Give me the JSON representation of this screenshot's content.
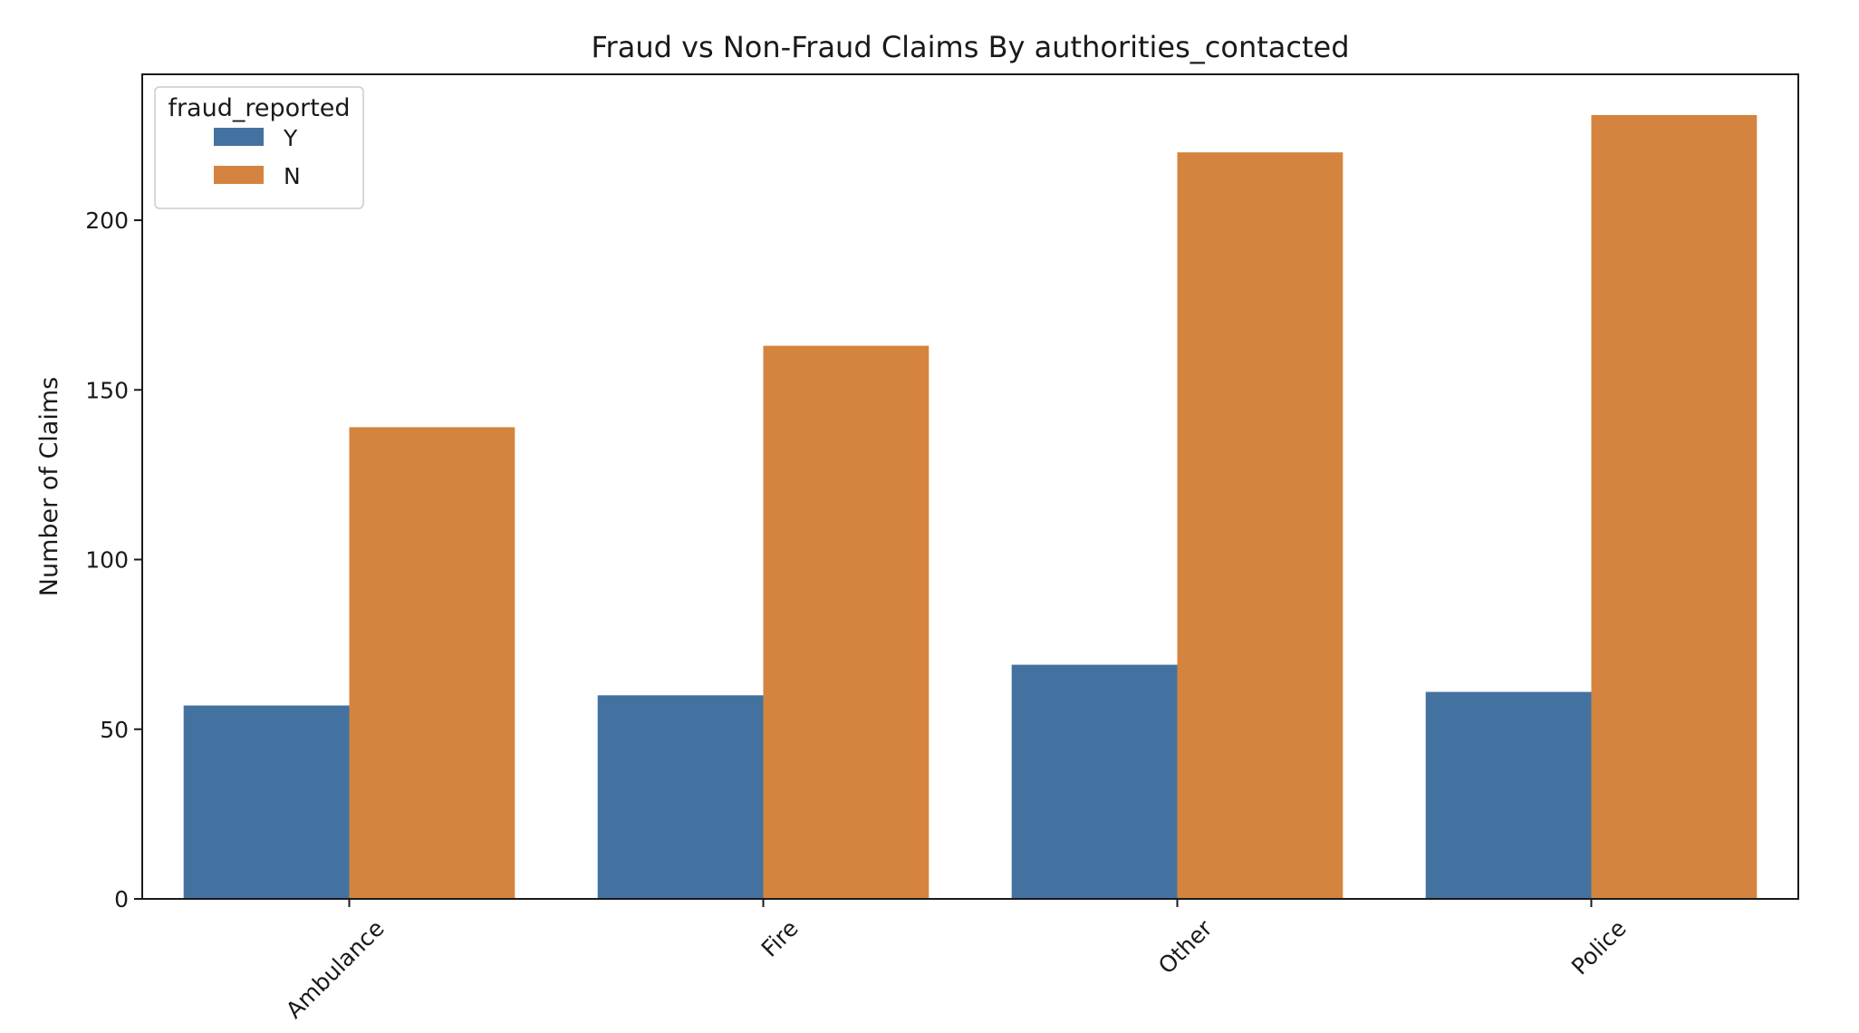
{
  "chart_data": {
    "type": "bar",
    "title": "Fraud vs Non-Fraud Claims By authorities_contacted",
    "xlabel": "",
    "ylabel": "Number of Claims",
    "categories": [
      "Ambulance",
      "Fire",
      "Other",
      "Police"
    ],
    "series": [
      {
        "name": "Y",
        "values": [
          57,
          60,
          69,
          61
        ],
        "color": "#4472a0"
      },
      {
        "name": "N",
        "values": [
          139,
          163,
          220,
          231
        ],
        "color": "#d4843e"
      }
    ],
    "ylim": [
      0,
      243
    ],
    "yticks": [
      0,
      50,
      100,
      150,
      200
    ],
    "legend": {
      "title": "fraud_reported",
      "placement": "top-left"
    },
    "grid": false
  }
}
